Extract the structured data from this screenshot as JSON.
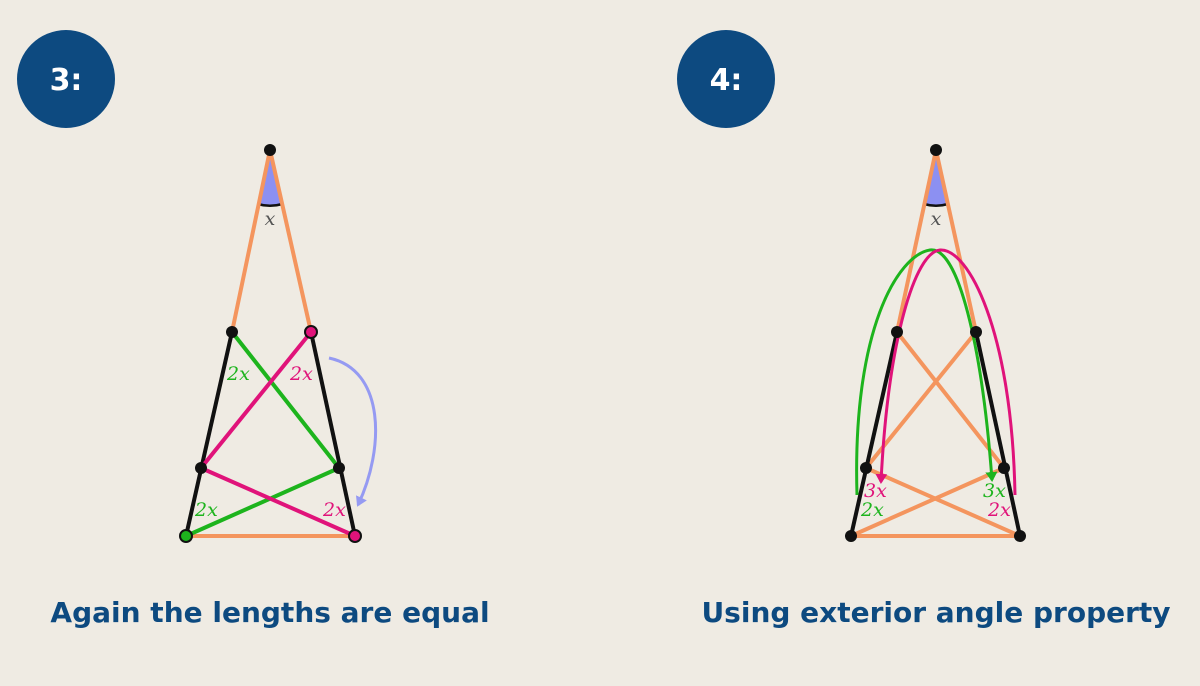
{
  "colors": {
    "background": "#efebe3",
    "badge": "#0d4a80",
    "caption": "#0d4a80",
    "orange": "#f4955e",
    "black": "#111111",
    "green": "#1db41d",
    "magenta": "#e0137a",
    "angle_fill": "#8c90f2",
    "angle_label": "#555555",
    "arrow_blue": "#959af2"
  },
  "panel_left": {
    "badge_label": "3:",
    "caption": "Again the lengths are equal",
    "apex_angle_label": "x",
    "label_upper_green": "2x",
    "label_upper_magenta": "2x",
    "label_lower_green": "2x",
    "label_lower_magenta": "2x"
  },
  "panel_right": {
    "badge_label": "4:",
    "caption": "Using exterior angle property",
    "apex_angle_label": "x",
    "left_exterior_label": "3x",
    "left_base_label": "2x",
    "right_exterior_label": "3x",
    "right_base_label": "2x"
  }
}
